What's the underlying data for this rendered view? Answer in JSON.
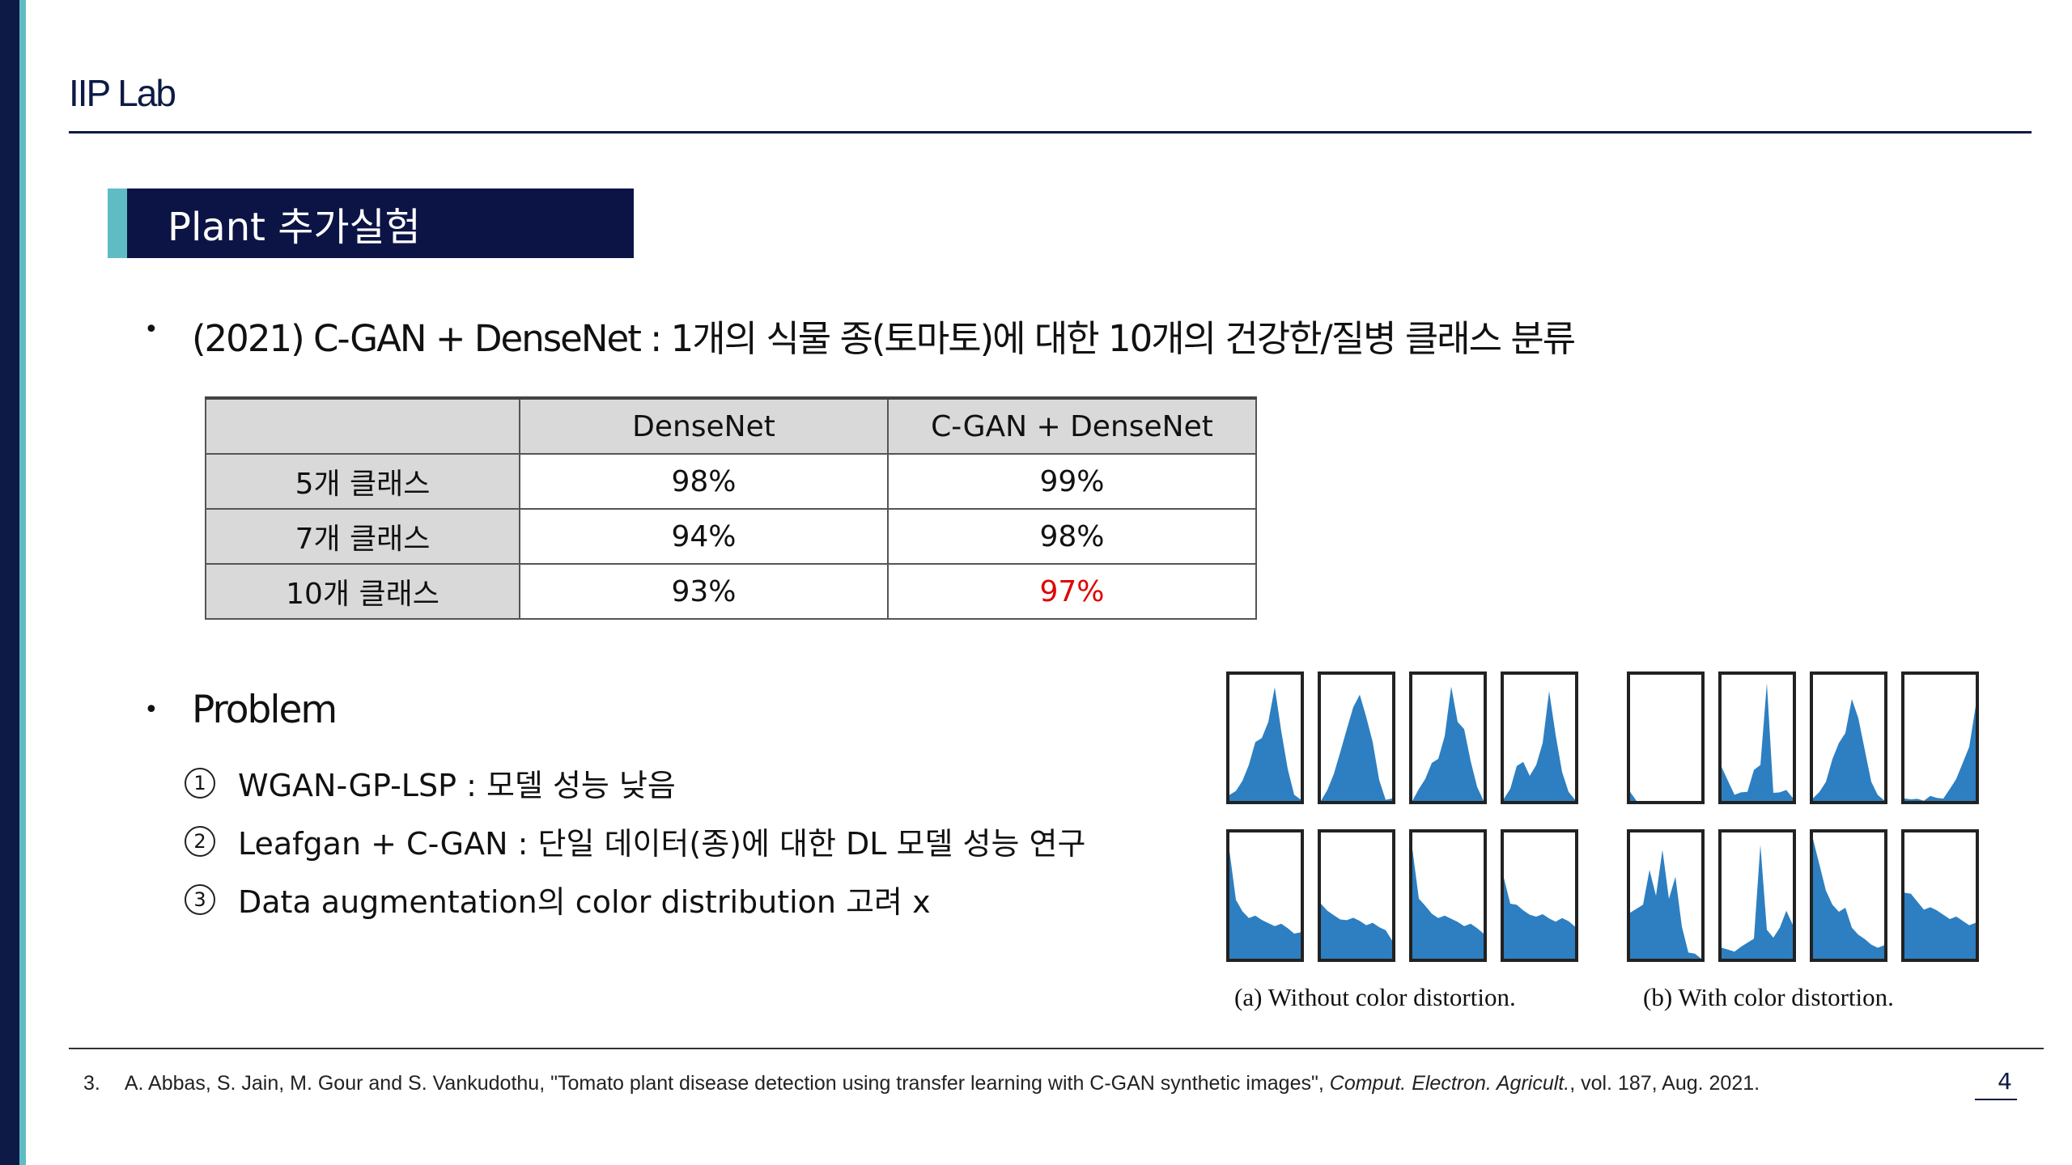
{
  "header": {
    "lab": "IIP Lab"
  },
  "section": {
    "title": "Plant 추가실험"
  },
  "bullet1": {
    "symbol": "•",
    "text": "(2021) C-GAN + DenseNet : 1개의 식물 종(토마토)에 대한 10개의 건강한/질병 클래스 분류"
  },
  "table": {
    "headers": [
      "",
      "DenseNet",
      "C-GAN + DenseNet"
    ],
    "rows": [
      {
        "label": "5개 클래스",
        "densenet": "98%",
        "cgan": "99%"
      },
      {
        "label": "7개 클래스",
        "densenet": "94%",
        "cgan": "98%"
      },
      {
        "label": "10개 클래스",
        "densenet": "93%",
        "cgan": "97%"
      }
    ],
    "highlight_color": "#e00000"
  },
  "bullet2": {
    "symbol": "•",
    "text": "Problem"
  },
  "problems": [
    {
      "num": "1",
      "text": "WGAN-GP-LSP : 모델 성능 낮음"
    },
    {
      "num": "2",
      "text": "Leafgan + C-GAN : 단일 데이터(종)에 대한 DL 모델 성능 연구"
    },
    {
      "num": "3",
      "text": "Data augmentation의 color distribution 고려 x"
    }
  ],
  "figure": {
    "caption_a": "(a) Without color distortion.",
    "caption_b": "(b) With color distortion.",
    "bar_color": "#2d7fc1"
  },
  "footer": {
    "ref_num": "3.",
    "ref_text": "A. Abbas, S. Jain, M. Gour and S. Vankudothu, \"Tomato plant disease detection using transfer learning with C-GAN synthetic images\",",
    "ref_journal": "Comput. Electron. Agricult.",
    "ref_tail": ", vol. 187, Aug. 2021.",
    "page": "4"
  }
}
